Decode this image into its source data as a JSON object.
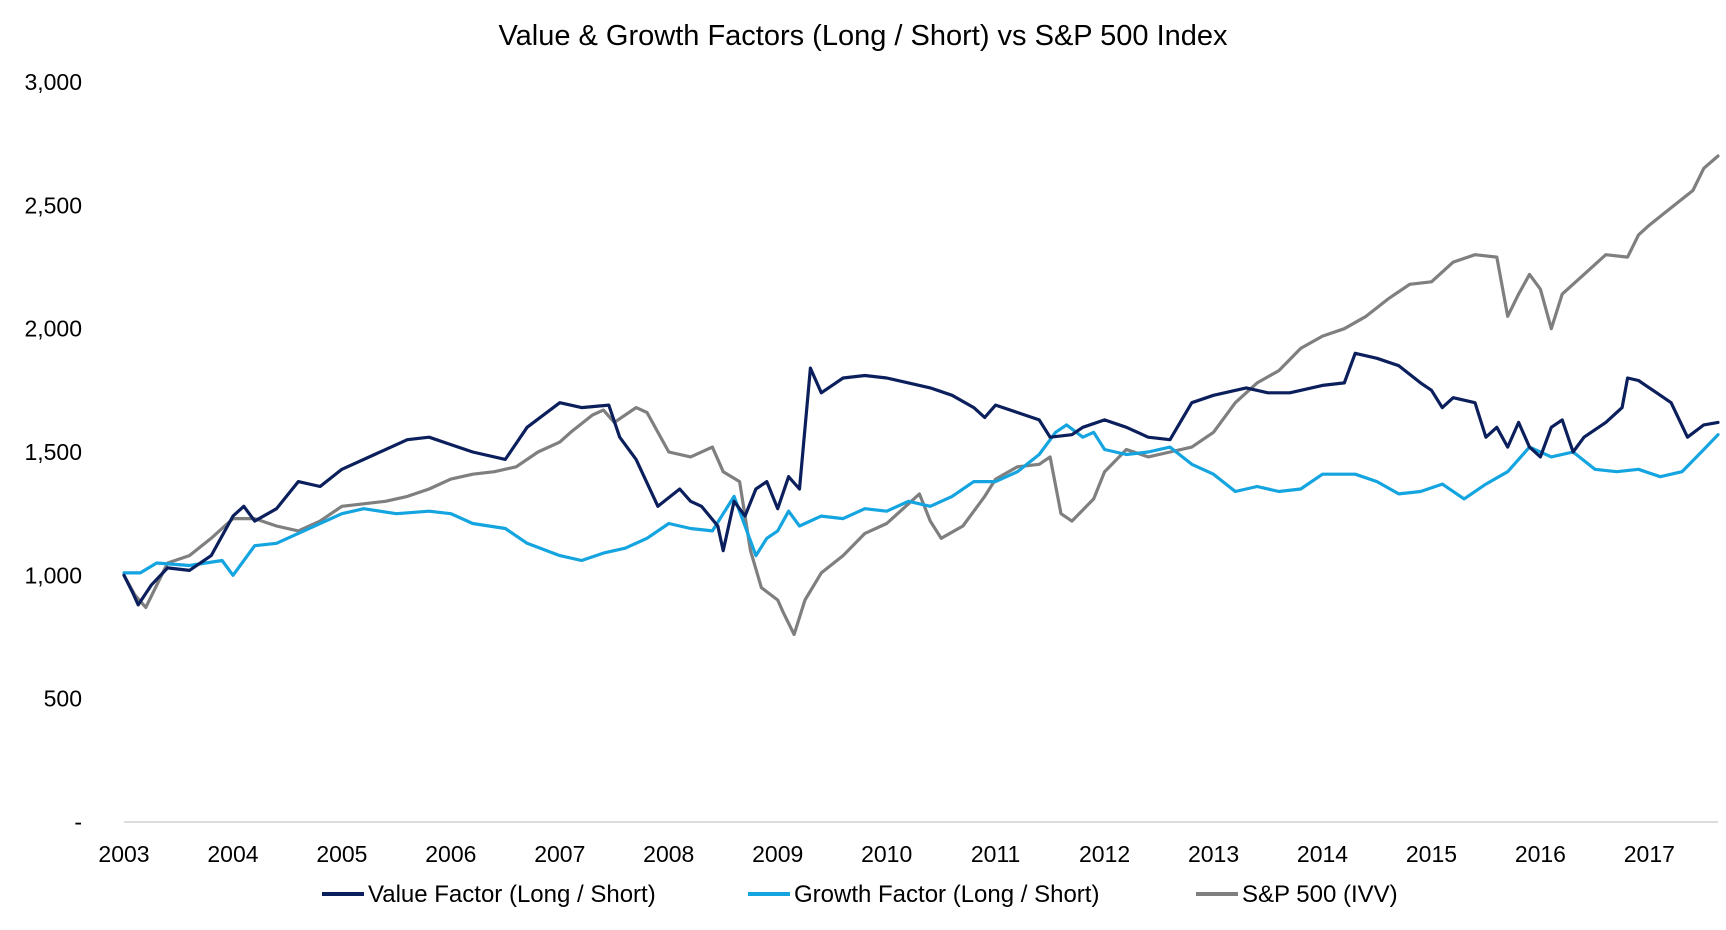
{
  "chart_data": {
    "type": "line",
    "title": "Value & Growth Factors (Long / Short) vs S&P 500 Index",
    "xlabel": "",
    "ylabel": "",
    "x_ticks": [
      "2003",
      "2004",
      "2005",
      "2006",
      "2007",
      "2008",
      "2009",
      "2010",
      "2011",
      "2012",
      "2013",
      "2014",
      "2015",
      "2016",
      "2017"
    ],
    "x_range": [
      2003.0,
      2017.63
    ],
    "y_ticks": [
      {
        "value": 0,
        "label": "-"
      },
      {
        "value": 500,
        "label": "500"
      },
      {
        "value": 1000,
        "label": "1,000"
      },
      {
        "value": 1500,
        "label": "1,500"
      },
      {
        "value": 2000,
        "label": "2,000"
      },
      {
        "value": 2500,
        "label": "2,500"
      },
      {
        "value": 3000,
        "label": "3,000"
      }
    ],
    "ylim": [
      0,
      3000
    ],
    "grid": false,
    "legend_position": "bottom",
    "series": [
      {
        "name": "Value Factor (Long / Short)",
        "color": "#0b1f5c",
        "points": [
          [
            2003.0,
            1000
          ],
          [
            2003.08,
            930
          ],
          [
            2003.13,
            880
          ],
          [
            2003.25,
            960
          ],
          [
            2003.4,
            1030
          ],
          [
            2003.6,
            1020
          ],
          [
            2003.8,
            1080
          ],
          [
            2004.0,
            1240
          ],
          [
            2004.1,
            1280
          ],
          [
            2004.2,
            1220
          ],
          [
            2004.4,
            1270
          ],
          [
            2004.6,
            1380
          ],
          [
            2004.8,
            1360
          ],
          [
            2005.0,
            1430
          ],
          [
            2005.3,
            1490
          ],
          [
            2005.6,
            1550
          ],
          [
            2005.8,
            1560
          ],
          [
            2006.0,
            1530
          ],
          [
            2006.2,
            1500
          ],
          [
            2006.5,
            1470
          ],
          [
            2006.7,
            1600
          ],
          [
            2007.0,
            1700
          ],
          [
            2007.2,
            1680
          ],
          [
            2007.45,
            1690
          ],
          [
            2007.55,
            1560
          ],
          [
            2007.7,
            1470
          ],
          [
            2007.9,
            1280
          ],
          [
            2008.1,
            1350
          ],
          [
            2008.2,
            1300
          ],
          [
            2008.3,
            1280
          ],
          [
            2008.45,
            1200
          ],
          [
            2008.5,
            1100
          ],
          [
            2008.6,
            1300
          ],
          [
            2008.7,
            1240
          ],
          [
            2008.8,
            1350
          ],
          [
            2008.9,
            1380
          ],
          [
            2009.0,
            1270
          ],
          [
            2009.1,
            1400
          ],
          [
            2009.2,
            1350
          ],
          [
            2009.3,
            1840
          ],
          [
            2009.4,
            1740
          ],
          [
            2009.6,
            1800
          ],
          [
            2009.8,
            1810
          ],
          [
            2010.0,
            1800
          ],
          [
            2010.2,
            1780
          ],
          [
            2010.4,
            1760
          ],
          [
            2010.6,
            1730
          ],
          [
            2010.8,
            1680
          ],
          [
            2010.9,
            1640
          ],
          [
            2011.0,
            1690
          ],
          [
            2011.2,
            1660
          ],
          [
            2011.4,
            1630
          ],
          [
            2011.5,
            1560
          ],
          [
            2011.7,
            1570
          ],
          [
            2011.8,
            1600
          ],
          [
            2012.0,
            1630
          ],
          [
            2012.2,
            1600
          ],
          [
            2012.4,
            1560
          ],
          [
            2012.6,
            1550
          ],
          [
            2012.8,
            1700
          ],
          [
            2013.0,
            1730
          ],
          [
            2013.3,
            1760
          ],
          [
            2013.5,
            1740
          ],
          [
            2013.7,
            1740
          ],
          [
            2014.0,
            1770
          ],
          [
            2014.2,
            1780
          ],
          [
            2014.3,
            1900
          ],
          [
            2014.5,
            1880
          ],
          [
            2014.7,
            1850
          ],
          [
            2014.9,
            1780
          ],
          [
            2015.0,
            1750
          ],
          [
            2015.1,
            1680
          ],
          [
            2015.2,
            1720
          ],
          [
            2015.4,
            1700
          ],
          [
            2015.5,
            1560
          ],
          [
            2015.6,
            1600
          ],
          [
            2015.7,
            1520
          ],
          [
            2015.8,
            1620
          ],
          [
            2015.9,
            1520
          ],
          [
            2016.0,
            1480
          ],
          [
            2016.1,
            1600
          ],
          [
            2016.2,
            1630
          ],
          [
            2016.3,
            1500
          ],
          [
            2016.4,
            1560
          ],
          [
            2016.6,
            1620
          ],
          [
            2016.75,
            1680
          ],
          [
            2016.8,
            1800
          ],
          [
            2016.9,
            1790
          ],
          [
            2017.0,
            1760
          ],
          [
            2017.2,
            1700
          ],
          [
            2017.35,
            1560
          ],
          [
            2017.5,
            1610
          ],
          [
            2017.63,
            1620
          ]
        ]
      },
      {
        "name": "Growth Factor (Long / Short)",
        "color": "#14a4e0",
        "points": [
          [
            2003.0,
            1010
          ],
          [
            2003.15,
            1010
          ],
          [
            2003.3,
            1050
          ],
          [
            2003.6,
            1040
          ],
          [
            2003.9,
            1060
          ],
          [
            2004.0,
            1000
          ],
          [
            2004.2,
            1120
          ],
          [
            2004.4,
            1130
          ],
          [
            2004.6,
            1170
          ],
          [
            2004.8,
            1210
          ],
          [
            2005.0,
            1250
          ],
          [
            2005.2,
            1270
          ],
          [
            2005.5,
            1250
          ],
          [
            2005.8,
            1260
          ],
          [
            2006.0,
            1250
          ],
          [
            2006.2,
            1210
          ],
          [
            2006.5,
            1190
          ],
          [
            2006.7,
            1130
          ],
          [
            2007.0,
            1080
          ],
          [
            2007.2,
            1060
          ],
          [
            2007.4,
            1090
          ],
          [
            2007.6,
            1110
          ],
          [
            2007.8,
            1150
          ],
          [
            2008.0,
            1210
          ],
          [
            2008.2,
            1190
          ],
          [
            2008.4,
            1180
          ],
          [
            2008.5,
            1250
          ],
          [
            2008.6,
            1320
          ],
          [
            2008.7,
            1200
          ],
          [
            2008.8,
            1080
          ],
          [
            2008.9,
            1150
          ],
          [
            2009.0,
            1180
          ],
          [
            2009.1,
            1260
          ],
          [
            2009.2,
            1200
          ],
          [
            2009.4,
            1240
          ],
          [
            2009.6,
            1230
          ],
          [
            2009.8,
            1270
          ],
          [
            2010.0,
            1260
          ],
          [
            2010.2,
            1300
          ],
          [
            2010.4,
            1280
          ],
          [
            2010.6,
            1320
          ],
          [
            2010.8,
            1380
          ],
          [
            2011.0,
            1380
          ],
          [
            2011.2,
            1420
          ],
          [
            2011.4,
            1490
          ],
          [
            2011.55,
            1580
          ],
          [
            2011.65,
            1610
          ],
          [
            2011.8,
            1560
          ],
          [
            2011.9,
            1580
          ],
          [
            2012.0,
            1510
          ],
          [
            2012.2,
            1490
          ],
          [
            2012.4,
            1500
          ],
          [
            2012.6,
            1520
          ],
          [
            2012.8,
            1450
          ],
          [
            2013.0,
            1410
          ],
          [
            2013.2,
            1340
          ],
          [
            2013.4,
            1360
          ],
          [
            2013.6,
            1340
          ],
          [
            2013.8,
            1350
          ],
          [
            2014.0,
            1410
          ],
          [
            2014.3,
            1410
          ],
          [
            2014.5,
            1380
          ],
          [
            2014.7,
            1330
          ],
          [
            2014.9,
            1340
          ],
          [
            2015.1,
            1370
          ],
          [
            2015.3,
            1310
          ],
          [
            2015.5,
            1370
          ],
          [
            2015.7,
            1420
          ],
          [
            2015.9,
            1520
          ],
          [
            2016.1,
            1480
          ],
          [
            2016.3,
            1500
          ],
          [
            2016.5,
            1430
          ],
          [
            2016.7,
            1420
          ],
          [
            2016.9,
            1430
          ],
          [
            2017.1,
            1400
          ],
          [
            2017.3,
            1420
          ],
          [
            2017.5,
            1510
          ],
          [
            2017.63,
            1570
          ]
        ]
      },
      {
        "name": "S&P 500 (IVV)",
        "color": "#7f7f7f",
        "points": [
          [
            2003.0,
            1000
          ],
          [
            2003.1,
            920
          ],
          [
            2003.2,
            870
          ],
          [
            2003.4,
            1050
          ],
          [
            2003.6,
            1080
          ],
          [
            2003.8,
            1150
          ],
          [
            2004.0,
            1230
          ],
          [
            2004.2,
            1230
          ],
          [
            2004.4,
            1200
          ],
          [
            2004.6,
            1180
          ],
          [
            2004.8,
            1220
          ],
          [
            2005.0,
            1280
          ],
          [
            2005.2,
            1290
          ],
          [
            2005.4,
            1300
          ],
          [
            2005.6,
            1320
          ],
          [
            2005.8,
            1350
          ],
          [
            2006.0,
            1390
          ],
          [
            2006.2,
            1410
          ],
          [
            2006.4,
            1420
          ],
          [
            2006.6,
            1440
          ],
          [
            2006.8,
            1500
          ],
          [
            2007.0,
            1540
          ],
          [
            2007.1,
            1580
          ],
          [
            2007.3,
            1650
          ],
          [
            2007.4,
            1670
          ],
          [
            2007.5,
            1620
          ],
          [
            2007.7,
            1680
          ],
          [
            2007.8,
            1660
          ],
          [
            2008.0,
            1500
          ],
          [
            2008.2,
            1480
          ],
          [
            2008.4,
            1520
          ],
          [
            2008.5,
            1420
          ],
          [
            2008.65,
            1380
          ],
          [
            2008.75,
            1100
          ],
          [
            2008.85,
            950
          ],
          [
            2009.0,
            900
          ],
          [
            2009.05,
            850
          ],
          [
            2009.15,
            760
          ],
          [
            2009.25,
            900
          ],
          [
            2009.4,
            1010
          ],
          [
            2009.6,
            1080
          ],
          [
            2009.8,
            1170
          ],
          [
            2010.0,
            1210
          ],
          [
            2010.2,
            1290
          ],
          [
            2010.3,
            1330
          ],
          [
            2010.4,
            1220
          ],
          [
            2010.5,
            1150
          ],
          [
            2010.7,
            1200
          ],
          [
            2010.9,
            1320
          ],
          [
            2011.0,
            1390
          ],
          [
            2011.2,
            1440
          ],
          [
            2011.4,
            1450
          ],
          [
            2011.5,
            1480
          ],
          [
            2011.6,
            1250
          ],
          [
            2011.7,
            1220
          ],
          [
            2011.9,
            1310
          ],
          [
            2012.0,
            1420
          ],
          [
            2012.2,
            1510
          ],
          [
            2012.4,
            1480
          ],
          [
            2012.6,
            1500
          ],
          [
            2012.8,
            1520
          ],
          [
            2013.0,
            1580
          ],
          [
            2013.2,
            1700
          ],
          [
            2013.4,
            1780
          ],
          [
            2013.6,
            1830
          ],
          [
            2013.8,
            1920
          ],
          [
            2014.0,
            1970
          ],
          [
            2014.2,
            2000
          ],
          [
            2014.4,
            2050
          ],
          [
            2014.6,
            2120
          ],
          [
            2014.8,
            2180
          ],
          [
            2015.0,
            2190
          ],
          [
            2015.2,
            2270
          ],
          [
            2015.4,
            2300
          ],
          [
            2015.6,
            2290
          ],
          [
            2015.7,
            2050
          ],
          [
            2015.8,
            2140
          ],
          [
            2015.9,
            2220
          ],
          [
            2016.0,
            2160
          ],
          [
            2016.1,
            2000
          ],
          [
            2016.2,
            2140
          ],
          [
            2016.4,
            2220
          ],
          [
            2016.6,
            2300
          ],
          [
            2016.8,
            2290
          ],
          [
            2016.9,
            2380
          ],
          [
            2017.0,
            2420
          ],
          [
            2017.2,
            2490
          ],
          [
            2017.4,
            2560
          ],
          [
            2017.5,
            2650
          ],
          [
            2017.63,
            2700
          ]
        ]
      }
    ]
  }
}
